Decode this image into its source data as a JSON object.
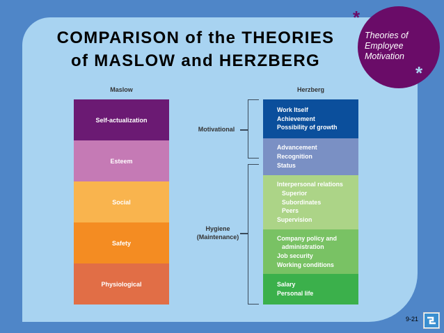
{
  "slide": {
    "title_line1": "COMPARISON of the THEORIES",
    "title_line2": "of MASLOW and HERZBERG",
    "badge": {
      "line1": "Theories of",
      "line2": "Employee",
      "line3": "Motivation"
    },
    "asterisk": "*",
    "page_number": "9-21",
    "logo_icon": "publisher-logo-icon"
  },
  "diagram": {
    "maslow_header": "Maslow",
    "herzberg_header": "Herzberg",
    "maslow": [
      {
        "label": "Self-actualization",
        "color": "#6b1a73"
      },
      {
        "label": "Esteem",
        "color": "#c57ab5"
      },
      {
        "label": "Social",
        "color": "#f9b44e"
      },
      {
        "label": "Safety",
        "color": "#f48c22"
      },
      {
        "label": "Physiological",
        "color": "#e16e46"
      }
    ],
    "herzberg": [
      {
        "items": [
          "Work Itself",
          "Achievement",
          "Possibility of growth"
        ],
        "color": "#0b4f9c"
      },
      {
        "items": [
          "Advancement",
          "Recognition",
          "Status"
        ],
        "color": "#7a90c4"
      },
      {
        "items": [
          "Interpersonal relations",
          "Superior",
          "Subordinates",
          "Peers",
          "Supervision"
        ],
        "color": "#acd487"
      },
      {
        "items": [
          "Company policy and",
          "administration",
          "Job security",
          "Working conditions"
        ],
        "color": "#79c264"
      },
      {
        "items": [
          "Salary",
          "Personal life"
        ],
        "color": "#3bb04b"
      }
    ],
    "motivational_label": "Motivational",
    "hygiene_label_line1": "Hygiene",
    "hygiene_label_line2": "(Maintenance)"
  }
}
